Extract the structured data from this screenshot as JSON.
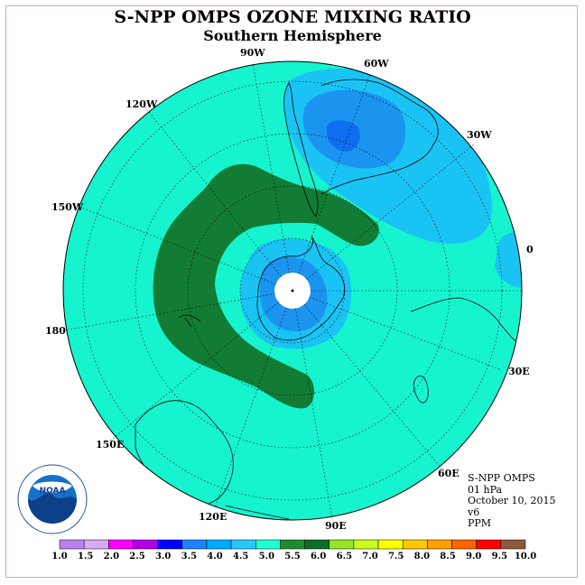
{
  "title": "S-NPP OMPS OZONE MIXING RATIO",
  "subtitle": "Southern Hemisphere",
  "lon_labels": [
    "90W",
    "60W",
    "30W",
    "0",
    "30E",
    "60E",
    "90E",
    "120E",
    "150E",
    "180",
    "150W",
    "120W"
  ],
  "info": {
    "line1": "S-NPP OMPS",
    "line2": "01 hPa",
    "line3": "October 10, 2015",
    "line4": "v6",
    "line5": "PPM"
  },
  "logo_text": "NOAA",
  "colorbar": {
    "ticks": [
      "1.0",
      "1.5",
      "2.0",
      "2.5",
      "3.0",
      "3.5",
      "4.0",
      "4.5",
      "5.0",
      "5.5",
      "6.0",
      "6.5",
      "7.0",
      "7.5",
      "8.0",
      "8.5",
      "9.0",
      "9.5",
      "10.0"
    ],
    "colors": [
      "#b982f0",
      "#d7aaf5",
      "#ff00ff",
      "#b400e6",
      "#0000ff",
      "#1e82ff",
      "#00aaff",
      "#28c8ff",
      "#1effd2",
      "#1e8c32",
      "#0a6e28",
      "#96e628",
      "#c8ff1e",
      "#ffff00",
      "#ffc800",
      "#ffa000",
      "#ff6400",
      "#ff0000",
      "#8c5a3c"
    ]
  },
  "colors": {
    "background_field": "#15f4cf",
    "light_blue": "#19c4f5",
    "mid_blue": "#1b94f0",
    "dark_blue": "#0f6ef0",
    "green": "#137c34",
    "pole": "#ffffff"
  }
}
